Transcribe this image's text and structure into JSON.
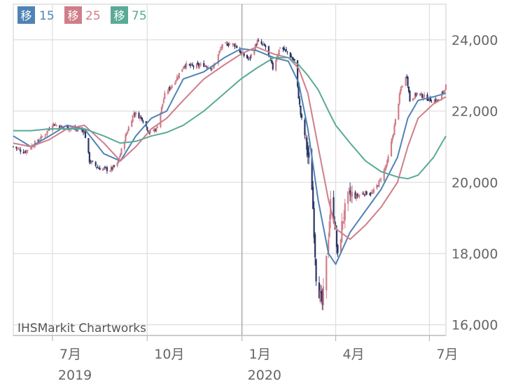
{
  "chart_data": {
    "type": "candlestick",
    "source": "IHSMarkit Chartworks",
    "legend": [
      {
        "box": "移",
        "label": "15",
        "color": "#4f83b5"
      },
      {
        "box": "移",
        "label": "25",
        "color": "#cf7e89"
      },
      {
        "box": "移",
        "label": "75",
        "color": "#5aaa97"
      }
    ],
    "y_ticks": [
      "24,000",
      "22,000",
      "20,000",
      "18,000",
      "16,000"
    ],
    "y_tick_values": [
      24000,
      22000,
      20000,
      18000,
      16000
    ],
    "ylim": [
      15700,
      25000
    ],
    "x_tick_labels": [
      {
        "month": "7月",
        "year": "2019",
        "date": "2019-07-01"
      },
      {
        "month": "10月",
        "year": "",
        "date": "2019-10-01"
      },
      {
        "month": "1月",
        "year": "2020",
        "date": "2020-01-01"
      },
      {
        "month": "4月",
        "year": "",
        "date": "2020-04-01"
      },
      {
        "month": "7月",
        "year": "",
        "date": "2020-07-01"
      }
    ],
    "xlim": [
      "2019-05-24",
      "2020-07-17"
    ],
    "up_color": "#cf7e89",
    "down_color": "#2b3566",
    "series": [
      {
        "name": "移 15",
        "color": "#4f83b5",
        "points": [
          [
            "2019-05-24",
            21300
          ],
          [
            "2019-06-10",
            21000
          ],
          [
            "2019-06-28",
            21300
          ],
          [
            "2019-07-15",
            21600
          ],
          [
            "2019-08-01",
            21500
          ],
          [
            "2019-08-20",
            20800
          ],
          [
            "2019-09-05",
            20600
          ],
          [
            "2019-09-20",
            21300
          ],
          [
            "2019-10-05",
            21800
          ],
          [
            "2019-10-20",
            22000
          ],
          [
            "2019-11-05",
            22900
          ],
          [
            "2019-11-25",
            23100
          ],
          [
            "2019-12-15",
            23500
          ],
          [
            "2019-12-31",
            23750
          ],
          [
            "2020-01-15",
            23700
          ],
          [
            "2020-02-01",
            23500
          ],
          [
            "2020-02-15",
            23400
          ],
          [
            "2020-02-25",
            22800
          ],
          [
            "2020-03-05",
            21500
          ],
          [
            "2020-03-15",
            19500
          ],
          [
            "2020-03-25",
            18000
          ],
          [
            "2020-04-01",
            17700
          ],
          [
            "2020-04-15",
            18600
          ],
          [
            "2020-04-30",
            19200
          ],
          [
            "2020-05-15",
            19800
          ],
          [
            "2020-05-31",
            20700
          ],
          [
            "2020-06-10",
            21800
          ],
          [
            "2020-06-20",
            22300
          ],
          [
            "2020-07-05",
            22400
          ],
          [
            "2020-07-17",
            22500
          ]
        ]
      },
      {
        "name": "移 25",
        "color": "#cf7e89",
        "points": [
          [
            "2019-05-24",
            21100
          ],
          [
            "2019-06-10",
            21000
          ],
          [
            "2019-06-28",
            21200
          ],
          [
            "2019-07-15",
            21500
          ],
          [
            "2019-08-01",
            21600
          ],
          [
            "2019-08-20",
            21100
          ],
          [
            "2019-09-05",
            20600
          ],
          [
            "2019-09-20",
            21000
          ],
          [
            "2019-10-05",
            21500
          ],
          [
            "2019-10-20",
            21800
          ],
          [
            "2019-11-05",
            22300
          ],
          [
            "2019-11-25",
            22900
          ],
          [
            "2019-12-15",
            23300
          ],
          [
            "2019-12-31",
            23600
          ],
          [
            "2020-01-15",
            23800
          ],
          [
            "2020-02-01",
            23600
          ],
          [
            "2020-02-15",
            23500
          ],
          [
            "2020-02-25",
            23200
          ],
          [
            "2020-03-05",
            22500
          ],
          [
            "2020-03-15",
            21000
          ],
          [
            "2020-03-25",
            19500
          ],
          [
            "2020-04-01",
            18700
          ],
          [
            "2020-04-15",
            18400
          ],
          [
            "2020-04-30",
            18800
          ],
          [
            "2020-05-15",
            19300
          ],
          [
            "2020-05-31",
            20000
          ],
          [
            "2020-06-10",
            21000
          ],
          [
            "2020-06-20",
            21800
          ],
          [
            "2020-07-05",
            22200
          ],
          [
            "2020-07-17",
            22400
          ]
        ]
      },
      {
        "name": "移 75",
        "color": "#5aaa97",
        "points": [
          [
            "2019-05-24",
            21450
          ],
          [
            "2019-06-10",
            21450
          ],
          [
            "2019-06-28",
            21500
          ],
          [
            "2019-07-15",
            21500
          ],
          [
            "2019-08-01",
            21500
          ],
          [
            "2019-08-20",
            21300
          ],
          [
            "2019-09-05",
            21100
          ],
          [
            "2019-09-20",
            21150
          ],
          [
            "2019-10-05",
            21300
          ],
          [
            "2019-10-20",
            21400
          ],
          [
            "2019-11-05",
            21600
          ],
          [
            "2019-11-25",
            22000
          ],
          [
            "2019-12-15",
            22500
          ],
          [
            "2019-12-31",
            22900
          ],
          [
            "2020-01-15",
            23200
          ],
          [
            "2020-02-01",
            23500
          ],
          [
            "2020-02-15",
            23500
          ],
          [
            "2020-02-25",
            23300
          ],
          [
            "2020-03-05",
            23000
          ],
          [
            "2020-03-15",
            22600
          ],
          [
            "2020-03-25",
            22000
          ],
          [
            "2020-04-01",
            21600
          ],
          [
            "2020-04-15",
            21100
          ],
          [
            "2020-04-30",
            20600
          ],
          [
            "2020-05-15",
            20300
          ],
          [
            "2020-05-31",
            20150
          ],
          [
            "2020-06-10",
            20100
          ],
          [
            "2020-06-20",
            20200
          ],
          [
            "2020-07-05",
            20700
          ],
          [
            "2020-07-17",
            21300
          ]
        ]
      }
    ],
    "close_path": [
      [
        "2019-05-24",
        21000
      ],
      [
        "2019-06-04",
        20850
      ],
      [
        "2019-06-14",
        21100
      ],
      [
        "2019-06-24",
        21350
      ],
      [
        "2019-07-01",
        21650
      ],
      [
        "2019-07-10",
        21550
      ],
      [
        "2019-07-22",
        21500
      ],
      [
        "2019-08-01",
        21450
      ],
      [
        "2019-08-06",
        20600
      ],
      [
        "2019-08-15",
        20400
      ],
      [
        "2019-08-26",
        20350
      ],
      [
        "2019-09-02",
        20500
      ],
      [
        "2019-09-10",
        21300
      ],
      [
        "2019-09-18",
        21950
      ],
      [
        "2019-09-26",
        21800
      ],
      [
        "2019-10-03",
        21400
      ],
      [
        "2019-10-10",
        21500
      ],
      [
        "2019-10-18",
        22450
      ],
      [
        "2019-10-28",
        22850
      ],
      [
        "2019-11-06",
        23300
      ],
      [
        "2019-11-15",
        23250
      ],
      [
        "2019-11-25",
        23300
      ],
      [
        "2019-12-04",
        23200
      ],
      [
        "2019-12-12",
        23800
      ],
      [
        "2019-12-19",
        23900
      ],
      [
        "2019-12-26",
        23850
      ],
      [
        "2019-12-30",
        23650
      ],
      [
        "2020-01-08",
        23450
      ],
      [
        "2020-01-16",
        23950
      ],
      [
        "2020-01-24",
        23800
      ],
      [
        "2020-01-31",
        23200
      ],
      [
        "2020-02-07",
        23800
      ],
      [
        "2020-02-14",
        23650
      ],
      [
        "2020-02-21",
        23400
      ],
      [
        "2020-02-27",
        21900
      ],
      [
        "2020-03-03",
        21200
      ],
      [
        "2020-03-09",
        19900
      ],
      [
        "2020-03-13",
        17400
      ],
      [
        "2020-03-17",
        16800
      ],
      [
        "2020-03-19",
        16550
      ],
      [
        "2020-03-24",
        18100
      ],
      [
        "2020-03-27",
        19400
      ],
      [
        "2020-03-31",
        18950
      ],
      [
        "2020-04-03",
        17850
      ],
      [
        "2020-04-08",
        19000
      ],
      [
        "2020-04-14",
        19650
      ],
      [
        "2020-04-20",
        19600
      ],
      [
        "2020-04-28",
        19700
      ],
      [
        "2020-05-07",
        19700
      ],
      [
        "2020-05-14",
        20050
      ],
      [
        "2020-05-21",
        20550
      ],
      [
        "2020-05-27",
        21400
      ],
      [
        "2020-06-03",
        22600
      ],
      [
        "2020-06-09",
        23000
      ],
      [
        "2020-06-12",
        22300
      ],
      [
        "2020-06-19",
        22500
      ],
      [
        "2020-06-26",
        22400
      ],
      [
        "2020-07-03",
        22300
      ],
      [
        "2020-07-10",
        22300
      ],
      [
        "2020-07-17",
        22700
      ]
    ]
  }
}
